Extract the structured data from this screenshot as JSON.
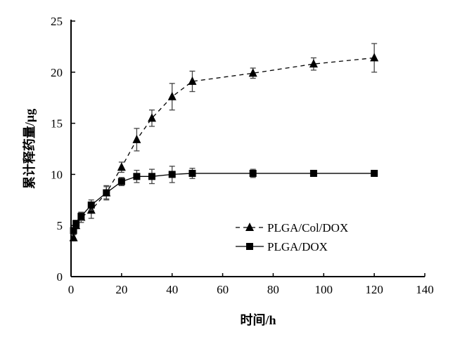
{
  "chart_data": {
    "type": "line",
    "title": "",
    "xlabel": "时间/h",
    "ylabel": "累计释药量/μg",
    "xlim": [
      0,
      140
    ],
    "ylim": [
      0,
      25
    ],
    "xticks": [
      0,
      20,
      40,
      60,
      80,
      100,
      120,
      140
    ],
    "yticks": [
      0,
      5,
      10,
      15,
      20,
      25
    ],
    "grid": false,
    "legend_position": "center-right",
    "x": [
      1,
      2,
      4,
      8,
      14,
      20,
      26,
      32,
      40,
      48,
      72,
      96,
      120
    ],
    "series": [
      {
        "name": "PLGA/Col/DOX",
        "marker": "triangle",
        "line": "dashed",
        "values": [
          3.8,
          5.0,
          5.8,
          6.5,
          8.2,
          10.7,
          13.4,
          15.5,
          17.6,
          19.1,
          19.9,
          20.8,
          21.4
        ],
        "errors": [
          0.3,
          0.3,
          0.5,
          0.8,
          0.6,
          0.5,
          1.1,
          0.8,
          1.3,
          1.0,
          0.5,
          0.6,
          1.4
        ]
      },
      {
        "name": "PLGA/DOX",
        "marker": "square",
        "line": "solid",
        "values": [
          4.5,
          5.2,
          5.9,
          7.0,
          8.2,
          9.3,
          9.8,
          9.8,
          10.0,
          10.1,
          10.1,
          10.1,
          10.1
        ],
        "errors": [
          0.3,
          0.3,
          0.4,
          0.5,
          0.7,
          0.4,
          0.6,
          0.7,
          0.8,
          0.5,
          0.4,
          0.2,
          0.2
        ]
      }
    ]
  }
}
